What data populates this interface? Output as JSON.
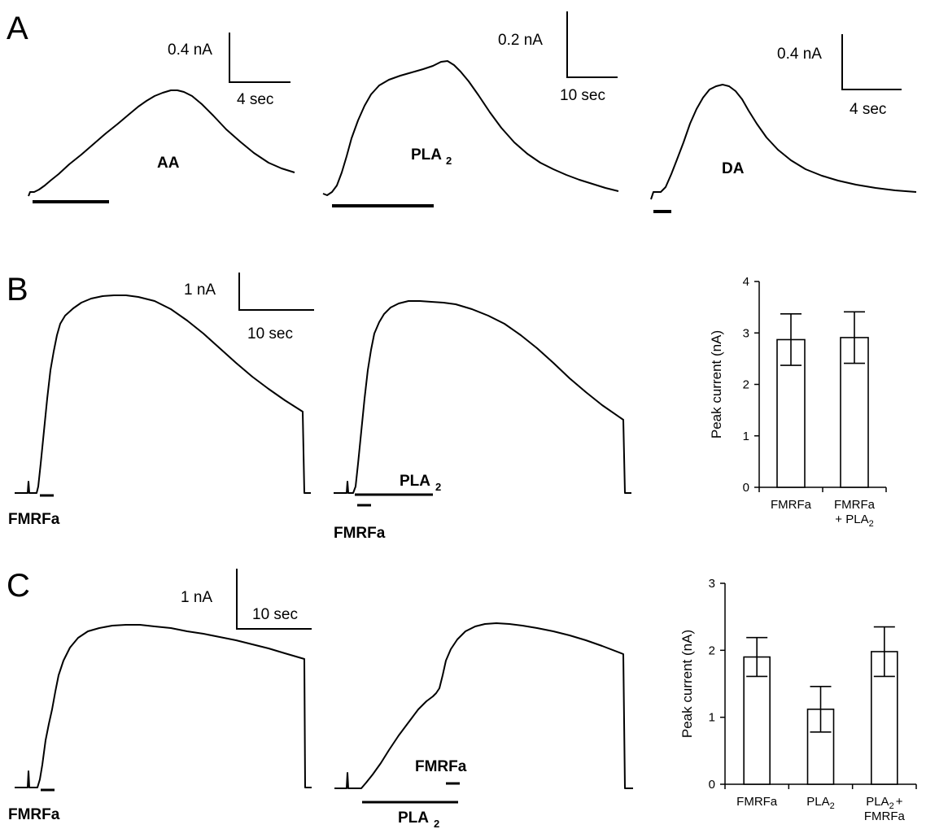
{
  "panels": {
    "a": {
      "letter": "A"
    },
    "b": {
      "letter": "B"
    },
    "c": {
      "letter": "C"
    }
  },
  "scale_bars": {
    "a1": {
      "current": "0.4 nA",
      "time": "4 sec"
    },
    "a2": {
      "current": "0.2 nA",
      "time": "10 sec"
    },
    "a3": {
      "current": "0.4 nA",
      "time": "4 sec"
    },
    "b": {
      "current": "1 nA",
      "time": "10 sec"
    },
    "c": {
      "current": "1 nA",
      "time": "10 sec"
    }
  },
  "trace_labels": {
    "a1": "AA",
    "a2": "PLA",
    "a2_sub": "2",
    "a3": "DA",
    "b1": "FMRFa",
    "b2_top": "PLA",
    "b2_top_sub": "2",
    "b2_bottom": "FMRFa",
    "c1": "FMRFa",
    "c2_top": "FMRFa",
    "c2_bottom": "PLA",
    "c2_bottom_sub": "2"
  },
  "chart_data": [
    {
      "type": "bar",
      "panel": "B",
      "ylabel": "Peak current (nA)",
      "ylim": [
        0,
        4
      ],
      "yticks": [
        "0",
        "1",
        "2",
        "3",
        "4"
      ],
      "categories": [
        "FMRFa",
        "FMRFa + PLA2"
      ],
      "category_lines": [
        [
          "FMRFa"
        ],
        [
          "FMRFa",
          "+ PLA",
          "2"
        ]
      ],
      "values": [
        2.87,
        2.91
      ],
      "errors": [
        0.5,
        0.5
      ]
    },
    {
      "type": "bar",
      "panel": "C",
      "ylabel": "Peak current (nA)",
      "ylim": [
        0,
        3
      ],
      "yticks": [
        "0",
        "1",
        "2",
        "3"
      ],
      "categories": [
        "FMRFa",
        "PLA2",
        "PLA2 + FMRFa"
      ],
      "category_lines": [
        [
          "FMRFa"
        ],
        [
          "PLA",
          "2"
        ],
        [
          "PLA",
          "2",
          "+",
          "FMRFa"
        ]
      ],
      "values": [
        1.9,
        1.12,
        1.98
      ],
      "errors": [
        0.29,
        0.34,
        0.37
      ]
    }
  ]
}
